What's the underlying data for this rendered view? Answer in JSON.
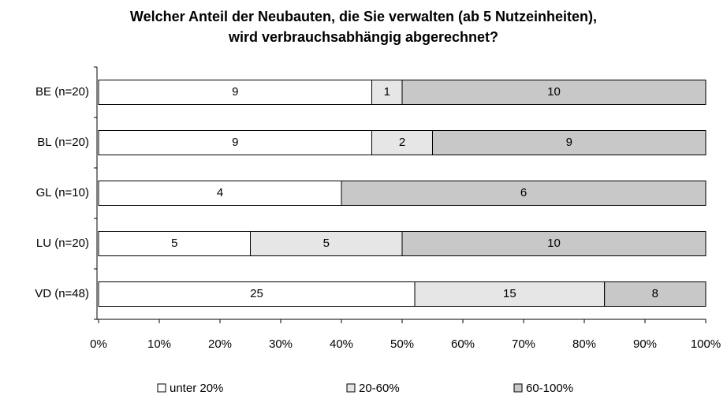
{
  "chart_data": {
    "type": "bar",
    "orientation": "horizontal",
    "stacking": "percent",
    "title": [
      "Welcher Anteil der Neubauten, die Sie verwalten (ab 5 Nutzeinheiten),",
      "wird verbrauchsabhängig abgerechnet?"
    ],
    "categories": [
      "BE (n=20)",
      "BL (n=20)",
      "GL (n=10)",
      "LU (n=20)",
      "VD (n=48)"
    ],
    "series": [
      {
        "name": "unter 20%",
        "color": "#ffffff",
        "values": [
          9,
          9,
          4,
          5,
          25
        ]
      },
      {
        "name": "20-60%",
        "color": "#e6e6e6",
        "values": [
          1,
          2,
          null,
          5,
          15
        ]
      },
      {
        "name": "60-100%",
        "color": "#c8c8c8",
        "values": [
          10,
          9,
          6,
          10,
          8
        ]
      }
    ],
    "xlim": [
      0,
      100
    ],
    "xticks": [
      {
        "value": 0,
        "label": "0%"
      },
      {
        "value": 10,
        "label": "10%"
      },
      {
        "value": 20,
        "label": "20%"
      },
      {
        "value": 30,
        "label": "30%"
      },
      {
        "value": 40,
        "label": "40%"
      },
      {
        "value": 50,
        "label": "50%"
      },
      {
        "value": 60,
        "label": "60%"
      },
      {
        "value": 70,
        "label": "70%"
      },
      {
        "value": 80,
        "label": "80%"
      },
      {
        "value": 90,
        "label": "90%"
      },
      {
        "value": 100,
        "label": "100%"
      }
    ],
    "legend": "bottom"
  }
}
